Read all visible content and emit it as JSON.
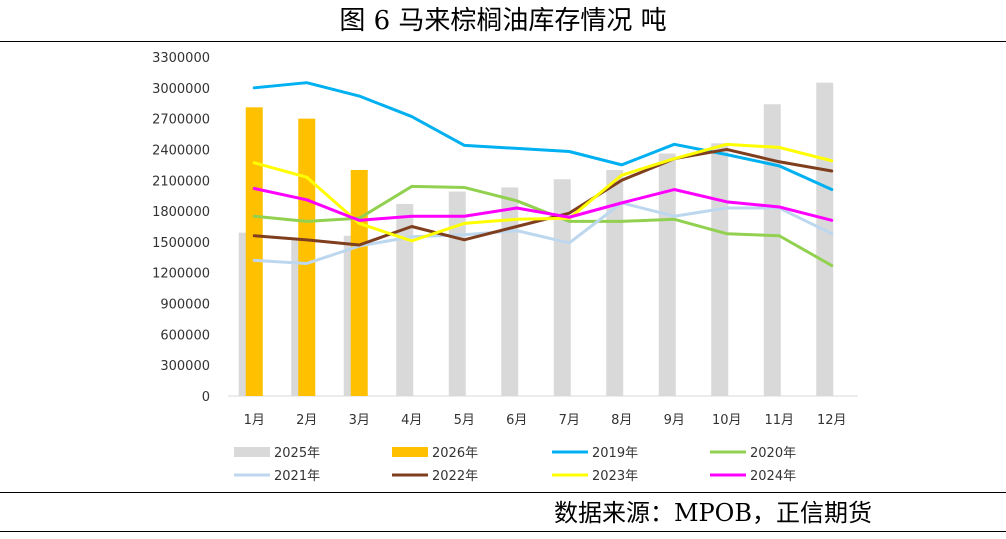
{
  "header": {
    "title": "图 6 马来棕榈油库存情况   吨"
  },
  "footer": {
    "source": "数据来源：MPOB，正信期货"
  },
  "chart_data": {
    "type": "bar",
    "title": "图 6 马来棕榈油库存情况   吨",
    "categories": [
      "1月",
      "2月",
      "3月",
      "4月",
      "5月",
      "6月",
      "7月",
      "8月",
      "9月",
      "10月",
      "11月",
      "12月"
    ],
    "ylim": [
      0,
      3300000
    ],
    "yticks": [
      0,
      300000,
      600000,
      900000,
      1200000,
      1500000,
      1800000,
      2100000,
      2400000,
      2700000,
      3000000,
      3300000
    ],
    "ytick_labels": [
      "0",
      "300000",
      "600000",
      "900000",
      "1200000",
      "1500000",
      "1800000",
      "2100000",
      "2400000",
      "2700000",
      "3000000",
      "3300000"
    ],
    "grid": false,
    "legend_position": "bottom",
    "bar_series": [
      {
        "name": "2025年",
        "color": "#d9d9d9",
        "values": [
          1590000,
          1520000,
          1560000,
          1870000,
          1990000,
          2030000,
          2110000,
          2200000,
          2360000,
          2460000,
          2840000,
          3050000
        ]
      },
      {
        "name": "2026年",
        "color": "#ffc000",
        "values": [
          2810000,
          2700000,
          2200000,
          null,
          null,
          null,
          null,
          null,
          null,
          null,
          null,
          null
        ]
      }
    ],
    "line_series": [
      {
        "name": "2019年",
        "color": "#00b0f0",
        "values": [
          3000000,
          3050000,
          2920000,
          2720000,
          2440000,
          2410000,
          2380000,
          2250000,
          2450000,
          2350000,
          2240000,
          2010000
        ]
      },
      {
        "name": "2020年",
        "color": "#92d050",
        "values": [
          1750000,
          1700000,
          1730000,
          2040000,
          2030000,
          1900000,
          1700000,
          1700000,
          1720000,
          1580000,
          1560000,
          1270000
        ]
      },
      {
        "name": "2021年",
        "color": "#bdd7ee",
        "values": [
          1320000,
          1290000,
          1460000,
          1550000,
          1570000,
          1610000,
          1490000,
          1880000,
          1750000,
          1830000,
          1830000,
          1580000
        ]
      },
      {
        "name": "2022年",
        "color": "#7f3f1f",
        "values": [
          1560000,
          1520000,
          1470000,
          1650000,
          1520000,
          1650000,
          1780000,
          2100000,
          2310000,
          2400000,
          2280000,
          2190000
        ]
      },
      {
        "name": "2023年",
        "color": "#ffff00",
        "values": [
          2270000,
          2130000,
          1680000,
          1510000,
          1680000,
          1720000,
          1730000,
          2150000,
          2310000,
          2450000,
          2420000,
          2290000
        ]
      },
      {
        "name": "2024年",
        "color": "#ff00ff",
        "values": [
          2020000,
          1910000,
          1710000,
          1750000,
          1750000,
          1830000,
          1740000,
          1880000,
          2010000,
          1890000,
          1840000,
          1710000
        ]
      }
    ],
    "legend": [
      "2025年",
      "2026年",
      "2019年",
      "2020年",
      "2021年",
      "2022年",
      "2023年",
      "2024年"
    ]
  }
}
